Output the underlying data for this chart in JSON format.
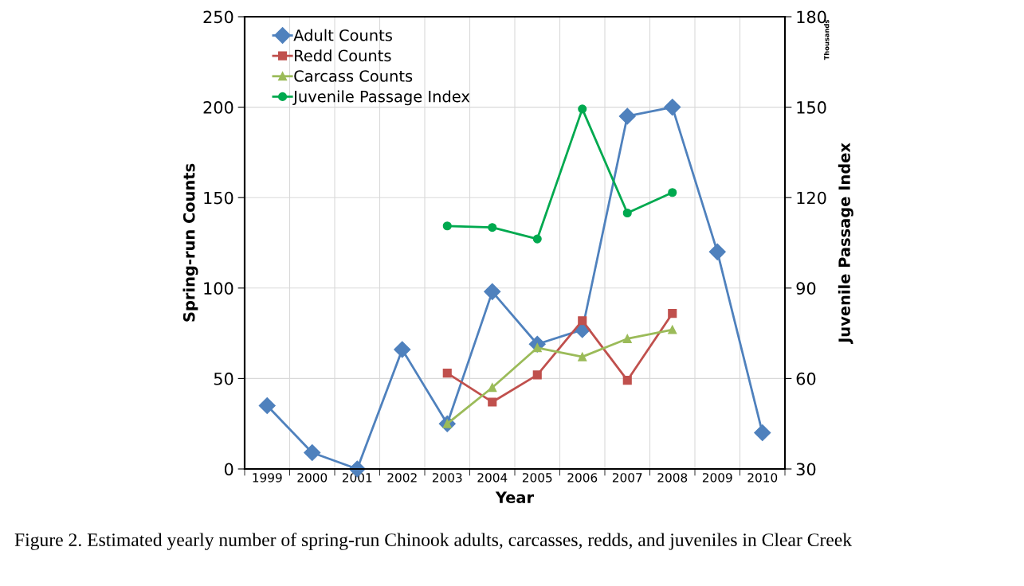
{
  "chart_data": {
    "type": "line",
    "xlabel": "Year",
    "ylabel": "Spring-run Counts",
    "y2label": "Juvenile Passage Index",
    "categories": [
      "1999",
      "2000",
      "2001",
      "2002",
      "2003",
      "2004",
      "2005",
      "2006",
      "2007",
      "2008",
      "2009",
      "2010"
    ],
    "series": [
      {
        "name": "Adult Counts",
        "color": "#4f81bd",
        "marker": "diamond",
        "values": [
          35,
          9,
          0,
          66,
          25,
          98,
          69,
          77,
          195,
          200,
          120,
          20
        ]
      },
      {
        "name": "Redd Counts",
        "color": "#c0504d",
        "marker": "square",
        "values": [
          null,
          null,
          null,
          null,
          53,
          37,
          52,
          82,
          49,
          86,
          null,
          null
        ]
      },
      {
        "name": "Carcass Counts",
        "color": "#9bbb59",
        "marker": "triangle",
        "values": [
          null,
          null,
          null,
          null,
          25,
          45,
          67,
          62,
          72,
          77,
          null,
          null
        ]
      },
      {
        "name": "Juvenile Passage Index",
        "color": "#00a94f",
        "marker": "circle",
        "axis": "y2",
        "values": [
          null,
          null,
          null,
          null,
          110.6,
          110.1,
          106.3,
          149.4,
          114.9,
          121.7,
          null,
          null
        ]
      }
    ],
    "ylim": [
      0,
      250
    ],
    "yticks": [
      0,
      50,
      100,
      150,
      200,
      250
    ],
    "y2lim": [
      30,
      180
    ],
    "y2ticks": [
      30,
      60,
      90,
      120,
      150,
      180
    ],
    "grid": true,
    "legend": "top left",
    "line_style": "solid",
    "annotations": [
      "Thousands",
      "Figure 2. Estimated yearly number of spring-run Chinook adults, carcasses, redds, and juveniles in Clear Creek"
    ]
  }
}
